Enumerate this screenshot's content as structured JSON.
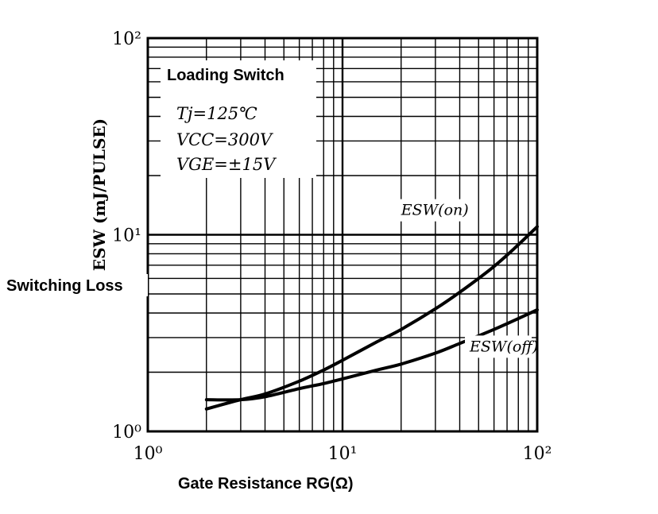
{
  "chart_data": {
    "type": "line",
    "title": "",
    "annotation_title": "Loading Switch",
    "conditions": [
      "Tj=125℃",
      "VCC=300V",
      "VGE=±15V"
    ],
    "xlabel": "Gate Resistance RG(Ω)",
    "ylabel": "ESW (mJ/PULSE)",
    "side_label": "Switching Loss",
    "x_scale": "log",
    "y_scale": "log",
    "xlim": [
      1,
      100
    ],
    "ylim": [
      1,
      100
    ],
    "x_ticks": [
      {
        "value": 1,
        "label": "10⁰"
      },
      {
        "value": 10,
        "label": "10¹"
      },
      {
        "value": 100,
        "label": "10²"
      }
    ],
    "y_ticks": [
      {
        "value": 1,
        "label": "10⁰"
      },
      {
        "value": 10,
        "label": "10¹"
      },
      {
        "value": 100,
        "label": "10²"
      }
    ],
    "grid": true,
    "series": [
      {
        "name": "ESW(on)",
        "x": [
          2,
          3,
          4,
          6,
          8,
          10,
          15,
          20,
          30,
          40,
          60,
          80,
          100
        ],
        "values": [
          1.3,
          1.45,
          1.55,
          1.8,
          2.05,
          2.3,
          2.85,
          3.3,
          4.2,
          5.1,
          6.9,
          8.9,
          11.0
        ]
      },
      {
        "name": "ESW(off)",
        "x": [
          2,
          3,
          4,
          6,
          8,
          10,
          15,
          20,
          30,
          40,
          60,
          80,
          100
        ],
        "values": [
          1.45,
          1.45,
          1.5,
          1.65,
          1.75,
          1.85,
          2.05,
          2.2,
          2.5,
          2.8,
          3.3,
          3.75,
          4.15
        ]
      }
    ]
  }
}
